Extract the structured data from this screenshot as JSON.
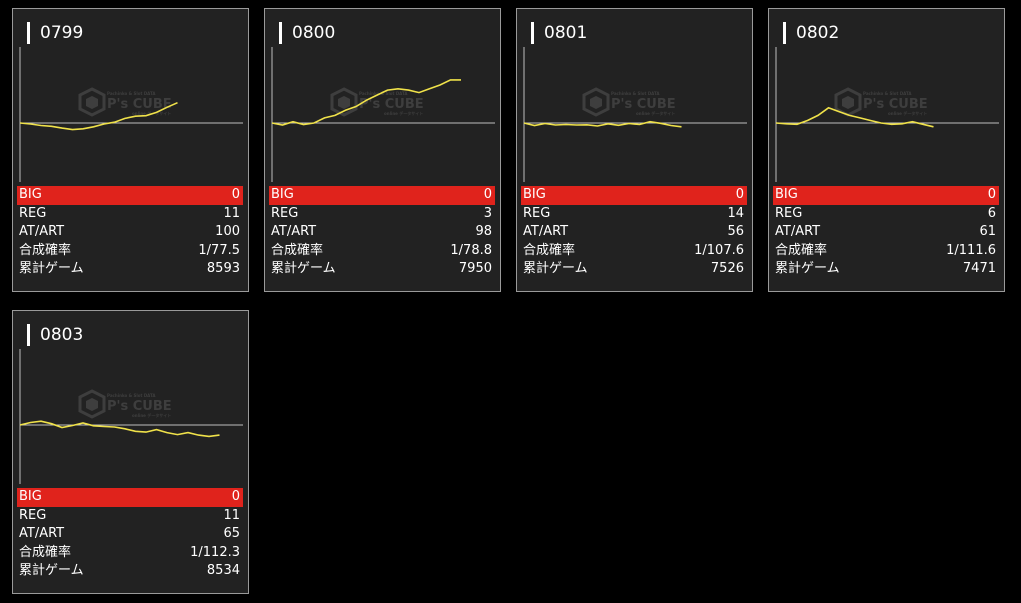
{
  "watermark": {
    "brand": "P's CUBE",
    "top_line": "Pachinko & Slot DATA",
    "bottom_line": "online データサイト"
  },
  "colors": {
    "line": "#f0e24a",
    "big_row": "#e0231c",
    "card_bg": "#222222"
  },
  "machines": [
    {
      "id": "0799",
      "stats": {
        "big_label": "BIG",
        "big": "0",
        "reg_label": "REG",
        "reg": "11",
        "art_label": "AT/ART",
        "art": "100",
        "prob_label": "合成確率",
        "prob": "1/77.5",
        "games_label": "累計ゲーム",
        "games": "8593"
      },
      "chart_data": {
        "type": "line",
        "ylim": [
          -2000,
          3000
        ],
        "values": [
          0,
          -40,
          -100,
          -130,
          -200,
          -260,
          -230,
          -150,
          -40,
          30,
          180,
          270,
          290,
          420,
          620,
          800
        ]
      }
    },
    {
      "id": "0800",
      "stats": {
        "big_label": "BIG",
        "big": "0",
        "reg_label": "REG",
        "reg": "3",
        "art_label": "AT/ART",
        "art": "98",
        "prob_label": "合成確率",
        "prob": "1/78.8",
        "games_label": "累計ゲーム",
        "games": "7950"
      },
      "chart_data": {
        "type": "line",
        "ylim": [
          -2000,
          3000
        ],
        "values": [
          0,
          -80,
          50,
          -60,
          0,
          200,
          300,
          500,
          650,
          900,
          1100,
          1300,
          1350,
          1300,
          1200,
          1350,
          1500,
          1700,
          1700
        ]
      }
    },
    {
      "id": "0801",
      "stats": {
        "big_label": "BIG",
        "big": "0",
        "reg_label": "REG",
        "reg": "14",
        "art_label": "AT/ART",
        "art": "56",
        "prob_label": "合成確率",
        "prob": "1/107.6",
        "games_label": "累計ゲーム",
        "games": "7526"
      },
      "chart_data": {
        "type": "line",
        "ylim": [
          -2000,
          3000
        ],
        "values": [
          0,
          -100,
          -20,
          -80,
          -60,
          -80,
          -70,
          -120,
          -30,
          -90,
          -20,
          -60,
          50,
          -10,
          -100,
          -150
        ]
      }
    },
    {
      "id": "0802",
      "stats": {
        "big_label": "BIG",
        "big": "0",
        "reg_label": "REG",
        "reg": "6",
        "art_label": "AT/ART",
        "art": "61",
        "prob_label": "合成確率",
        "prob": "1/111.6",
        "games_label": "累計ゲーム",
        "games": "7471"
      },
      "chart_data": {
        "type": "line",
        "ylim": [
          -2000,
          3000
        ],
        "values": [
          0,
          -30,
          -50,
          100,
          300,
          600,
          450,
          300,
          200,
          100,
          0,
          -50,
          -30,
          50,
          -50,
          -150
        ]
      }
    },
    {
      "id": "0803",
      "stats": {
        "big_label": "BIG",
        "big": "0",
        "reg_label": "REG",
        "reg": "11",
        "art_label": "AT/ART",
        "art": "65",
        "prob_label": "合成確率",
        "prob": "1/112.3",
        "games_label": "累計ゲーム",
        "games": "8534"
      },
      "chart_data": {
        "type": "line",
        "ylim": [
          -2000,
          3000
        ],
        "values": [
          0,
          100,
          150,
          50,
          -100,
          -20,
          80,
          -30,
          -60,
          -80,
          -150,
          -250,
          -280,
          -180,
          -300,
          -380,
          -300,
          -400,
          -450,
          -400
        ]
      }
    }
  ]
}
